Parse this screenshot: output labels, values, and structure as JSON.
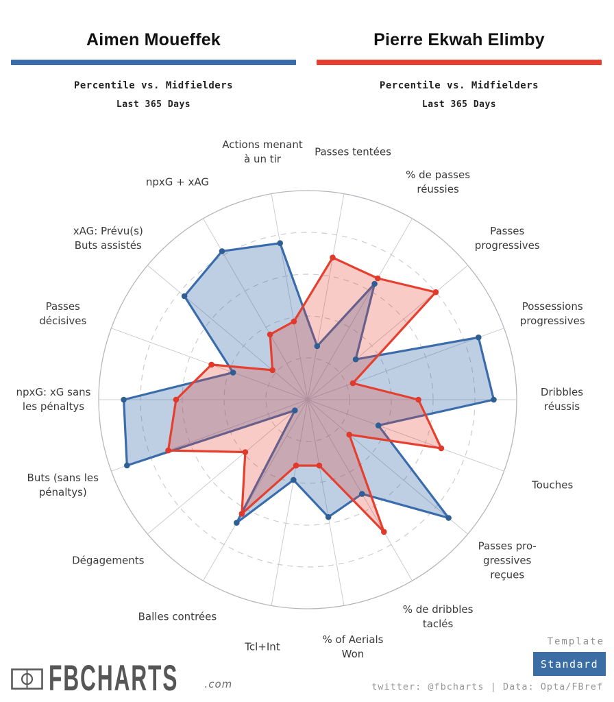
{
  "header": {
    "left": {
      "name": "Aimen Moueffek",
      "subtitle": "Percentile vs. Midfielders",
      "period": "Last 365 Days",
      "color": "#3A6CAC"
    },
    "right": {
      "name": "Pierre Ekwah Elimby",
      "subtitle": "Percentile vs. Midfielders",
      "period": "Last 365 Days",
      "color": "#E5402F"
    }
  },
  "chart_data": {
    "type": "radar",
    "title": "Percentile vs. Midfielders — Last 365 Days",
    "axis_max": 100,
    "rings_dashed": [
      20,
      40,
      60,
      80
    ],
    "grid_color": "#c9ccd1",
    "outer_circle_color": "#b4b7bc",
    "axes": [
      {
        "angle_deg": 100,
        "lines": [
          "Actions menant",
          "à un tir"
        ]
      },
      {
        "angle_deg": 80,
        "lines": [
          "Passes tentées"
        ]
      },
      {
        "angle_deg": 60,
        "lines": [
          "% de passes",
          "réussies"
        ]
      },
      {
        "angle_deg": 40,
        "lines": [
          "Passes",
          "progressives"
        ]
      },
      {
        "angle_deg": 20,
        "lines": [
          "Possessions",
          "progressives"
        ]
      },
      {
        "angle_deg": 0,
        "lines": [
          "Dribbles",
          "réussis"
        ]
      },
      {
        "angle_deg": -20,
        "lines": [
          "Touches"
        ]
      },
      {
        "angle_deg": -40,
        "lines": [
          "Passes pro-",
          "gressives",
          "reçues"
        ]
      },
      {
        "angle_deg": -60,
        "lines": [
          "% de dribbles",
          "taclés"
        ]
      },
      {
        "angle_deg": -80,
        "lines": [
          "% of Aerials",
          "Won"
        ]
      },
      {
        "angle_deg": -100,
        "lines": [
          "Tcl+Int"
        ]
      },
      {
        "angle_deg": -120,
        "lines": [
          "Balles contrées"
        ]
      },
      {
        "angle_deg": -140,
        "lines": [
          "Dégagements"
        ]
      },
      {
        "angle_deg": -160,
        "lines": [
          "Buts (sans les",
          "pénaltys)"
        ]
      },
      {
        "angle_deg": 180,
        "lines": [
          "npxG: xG sans",
          "les pénaltys"
        ]
      },
      {
        "angle_deg": 160,
        "lines": [
          "Passes",
          "décisives"
        ]
      },
      {
        "angle_deg": 140,
        "lines": [
          "xAG: Prévu(s)",
          "Buts assistés"
        ]
      },
      {
        "angle_deg": 120,
        "lines": [
          "npxG + xAG"
        ]
      }
    ],
    "series": [
      {
        "name": "Aimen Moueffek",
        "color": "#3A6CAC",
        "dot_color": "#2F5E93",
        "fill_opacity": 0.33,
        "values": [
          76,
          26,
          64,
          30,
          87,
          89,
          36,
          88,
          52,
          57,
          39,
          68,
          8,
          92,
          88,
          38,
          77,
          82
        ]
      },
      {
        "name": "Pierre Ekwah Elimby",
        "color": "#E5402F",
        "dot_color": "#E03A2C",
        "fill_opacity": 0.27,
        "values": [
          38,
          69,
          67,
          80,
          23,
          53,
          68,
          26,
          73,
          32,
          32,
          63,
          39,
          71,
          63,
          49,
          22,
          36
        ]
      }
    ]
  },
  "footer": {
    "logo_text": "FBCHARTS",
    "logo_suffix": ".com",
    "template_label": "Template",
    "template_value": "Standard",
    "template_button_color": "#3A6EA5",
    "credit": "twitter: @fbcharts | Data: Opta/FBref"
  }
}
